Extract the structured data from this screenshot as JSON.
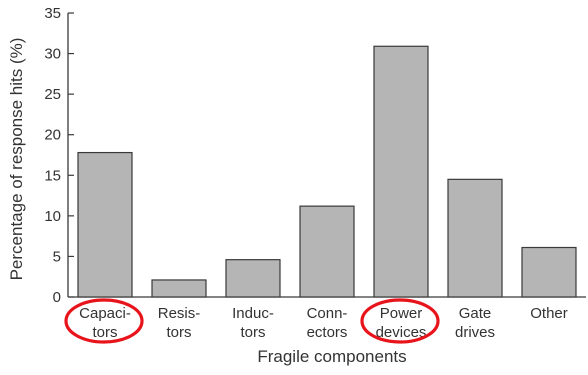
{
  "chart_data": {
    "type": "bar",
    "categories": [
      [
        "Capaci-",
        "tors"
      ],
      [
        "Resis-",
        "tors"
      ],
      [
        "Induc-",
        "tors"
      ],
      [
        "Conn-",
        "ectors"
      ],
      [
        "Power",
        "devices"
      ],
      [
        "Gate",
        "drives"
      ],
      [
        "Other"
      ]
    ],
    "values": [
      17.8,
      2.1,
      4.6,
      11.2,
      30.9,
      14.5,
      6.1
    ],
    "title": "",
    "xlabel": "Fragile components",
    "ylabel": "Percentage of response hits (%)",
    "ylim": [
      0,
      35
    ],
    "yticks": [
      0,
      5,
      10,
      15,
      20,
      25,
      30,
      35
    ],
    "grid": false,
    "legend": "none",
    "highlighted_categories": [
      0,
      4
    ],
    "colors": {
      "bar_fill": "#b5b5b5",
      "bar_stroke": "#3a3a3a",
      "axis": "#3a3a3a",
      "highlight": "#e8141b"
    }
  }
}
